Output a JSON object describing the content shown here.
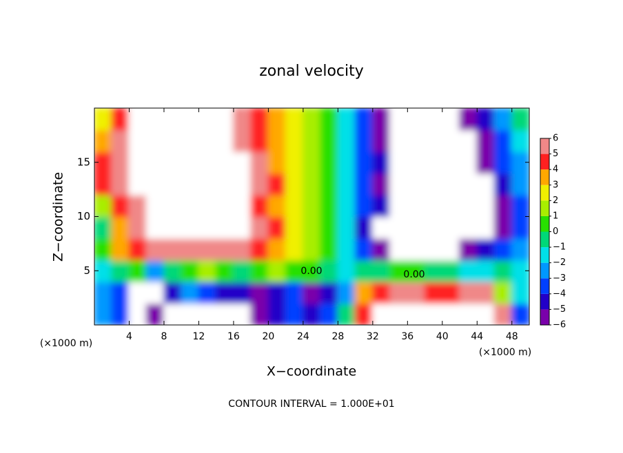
{
  "chart_data": {
    "type": "filled_contour",
    "title": "zonal velocity",
    "xlabel": "X−coordinate",
    "ylabel": "Z−coordinate",
    "x_unit_label": "(×1000 m)",
    "footer": "CONTOUR INTERVAL = 1.000E+01",
    "contour_labels": [
      "0.00",
      "0.00"
    ],
    "xlim": [
      0,
      50
    ],
    "ylim": [
      0,
      20
    ],
    "xticks": [
      4,
      8,
      12,
      16,
      20,
      24,
      28,
      32,
      36,
      40,
      44,
      48
    ],
    "yticks": [
      5,
      10,
      15
    ],
    "x": [
      1,
      3,
      5,
      7,
      9,
      11,
      13,
      15,
      17,
      19,
      21,
      23,
      25,
      27,
      29,
      31,
      33,
      35,
      37,
      39,
      41,
      43,
      45,
      47,
      49
    ],
    "y": [
      1,
      3,
      5,
      7,
      9,
      11,
      13,
      15,
      17,
      19
    ],
    "z": [
      [
        -2.5,
        -3.5,
        -8,
        -5.5,
        -8,
        -8,
        -8,
        -8,
        -8,
        -5.5,
        -4.5,
        -3.5,
        -4.5,
        -3.5,
        -0.5,
        4.5,
        8,
        8,
        8,
        8,
        8,
        8,
        8,
        5.5,
        -3.5
      ],
      [
        -2.5,
        -3.5,
        -8,
        -8,
        -4.5,
        -2.5,
        -3.5,
        -4.5,
        -4.5,
        -5.5,
        -4.5,
        -3.5,
        -5.5,
        -4.5,
        -2.5,
        3.5,
        4.5,
        5.5,
        5.5,
        4.5,
        4.5,
        5.5,
        5.5,
        1.5,
        -1.5
      ],
      [
        -1.5,
        -0.5,
        0.5,
        -2.5,
        -0.5,
        0.5,
        1.5,
        0.5,
        -0.5,
        0.5,
        1.5,
        0.5,
        0.5,
        -0.5,
        -1.5,
        -0.5,
        -0.5,
        0.5,
        0.5,
        -0.5,
        -0.5,
        -1.5,
        -1.5,
        -0.5,
        -1.5
      ],
      [
        0.5,
        3.5,
        4.5,
        5.5,
        5.5,
        5.5,
        5.5,
        5.5,
        5.5,
        4.5,
        3.5,
        2.5,
        1.5,
        0.5,
        -1.5,
        -3.5,
        -5.5,
        -8,
        -8,
        -8,
        -8,
        -5.5,
        -4.5,
        -3.5,
        -2.5
      ],
      [
        -0.5,
        3.5,
        5.5,
        8,
        8,
        8,
        8,
        8,
        8,
        5.5,
        4.5,
        2.5,
        1.5,
        0.5,
        -1.5,
        -4.5,
        -8,
        -8,
        -8,
        -8,
        -8,
        -8,
        -8,
        -5.5,
        -3.5
      ],
      [
        1.5,
        4.5,
        5.5,
        8,
        8,
        8,
        8,
        8,
        8,
        4.5,
        3.5,
        2.5,
        1.5,
        0.5,
        -1.5,
        -3.5,
        -4.5,
        -8,
        -8,
        -8,
        -8,
        -8,
        -8,
        -5.5,
        -3.5
      ],
      [
        4.5,
        5.5,
        8,
        8,
        8,
        8,
        8,
        8,
        8,
        5.5,
        4.5,
        2.5,
        1.5,
        0.5,
        -1.5,
        -3.5,
        -5.5,
        -8,
        -8,
        -8,
        -8,
        -8,
        -8,
        -4.5,
        -2.5
      ],
      [
        4.5,
        5.5,
        8,
        8,
        8,
        8,
        8,
        8,
        8,
        5.5,
        3.5,
        2.5,
        1.5,
        0.5,
        -1.5,
        -3.5,
        -4.5,
        -8,
        -8,
        -8,
        -8,
        -8,
        -5.5,
        -3.5,
        -2.5
      ],
      [
        3.5,
        5.5,
        8,
        8,
        8,
        8,
        8,
        8,
        5.5,
        4.5,
        3.5,
        2.5,
        1.5,
        0.5,
        -1.5,
        -3.5,
        -5.5,
        -8,
        -8,
        -8,
        -8,
        -8,
        -5.5,
        -3.5,
        -1.5
      ],
      [
        2.5,
        4.5,
        8,
        8,
        8,
        8,
        8,
        8,
        5.5,
        4.5,
        3.5,
        2.5,
        1.5,
        0.5,
        -1.5,
        -3.5,
        -5.5,
        -8,
        -8,
        -8,
        -8,
        -5.5,
        -4.5,
        -2.5,
        -0.5
      ]
    ],
    "colorbar": {
      "levels": [
        {
          "value": -6,
          "label": "−6"
        },
        {
          "value": -5,
          "label": "−5"
        },
        {
          "value": -4,
          "label": "−4"
        },
        {
          "value": -3,
          "label": "−3"
        },
        {
          "value": -2,
          "label": "−2"
        },
        {
          "value": -1,
          "label": "−1"
        },
        0,
        1,
        2,
        3,
        4,
        5,
        6
      ],
      "colors": [
        "#7a00aa",
        "#2200c8",
        "#0040ff",
        "#0098ff",
        "#00e0e8",
        "#00d878",
        "#28e000",
        "#a8ee00",
        "#f0f000",
        "#ffa800",
        "#ff2020",
        "#f08888"
      ]
    }
  }
}
